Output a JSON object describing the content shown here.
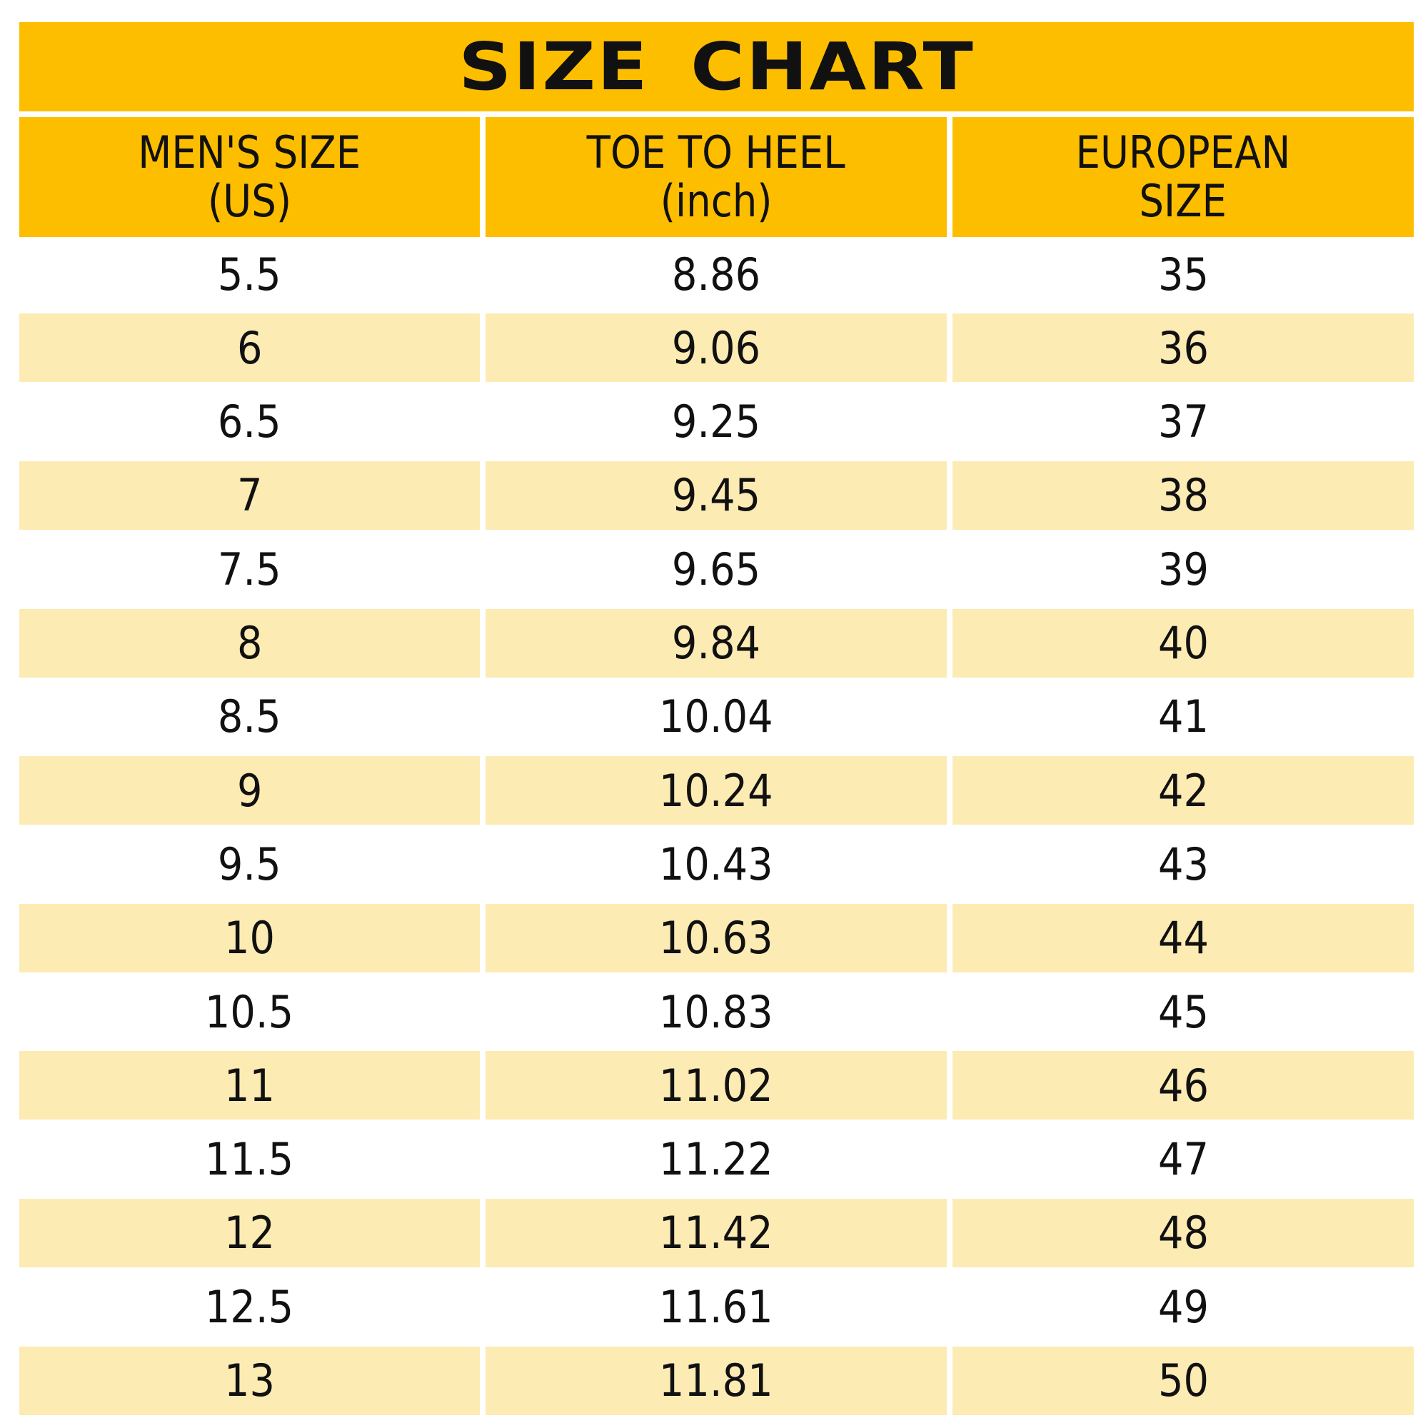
{
  "chart_data": {
    "type": "table",
    "title": "SIZE CHART",
    "columns": [
      {
        "lines": [
          "MEN'S SIZE",
          "(US)"
        ]
      },
      {
        "lines": [
          "TOE TO HEEL",
          "(inch)"
        ]
      },
      {
        "lines": [
          "EUROPEAN",
          "SIZE"
        ]
      }
    ],
    "rows": [
      [
        "5.5",
        "8.86",
        "35"
      ],
      [
        "6",
        "9.06",
        "36"
      ],
      [
        "6.5",
        "9.25",
        "37"
      ],
      [
        "7",
        "9.45",
        "38"
      ],
      [
        "7.5",
        "9.65",
        "39"
      ],
      [
        "8",
        "9.84",
        "40"
      ],
      [
        "8.5",
        "10.04",
        "41"
      ],
      [
        "9",
        "10.24",
        "42"
      ],
      [
        "9.5",
        "10.43",
        "43"
      ],
      [
        "10",
        "10.63",
        "44"
      ],
      [
        "10.5",
        "10.83",
        "45"
      ],
      [
        "11",
        "11.02",
        "46"
      ],
      [
        "11.5",
        "11.22",
        "47"
      ],
      [
        "12",
        "11.42",
        "48"
      ],
      [
        "12.5",
        "11.61",
        "49"
      ],
      [
        "13",
        "11.81",
        "50"
      ]
    ],
    "colors": {
      "header": "#FDBE00",
      "shaded_row": "#FDEBB4",
      "plain_row": "#FFFFFF",
      "text": "#111111"
    }
  }
}
